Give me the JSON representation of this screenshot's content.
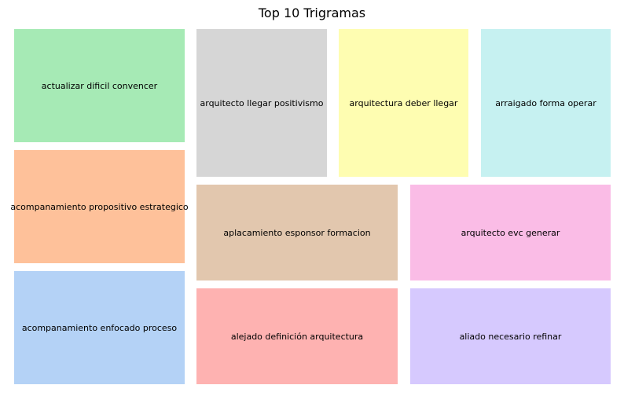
{
  "chart_data": {
    "type": "treemap",
    "title": "Top 10 Trigramas",
    "items": [
      {
        "label": "actualizar dificil convencer",
        "color": "#a6eab5"
      },
      {
        "label": "acompanamiento propositivo estrategico",
        "color": "#fec19a"
      },
      {
        "label": "acompanamiento enfocado proceso",
        "color": "#b4d2f6"
      },
      {
        "label": "arquitecto llegar positivismo",
        "color": "#d6d6d6"
      },
      {
        "label": "arquitectura deber llegar",
        "color": "#fefdb1"
      },
      {
        "label": "arraigado forma operar",
        "color": "#c6f1f1"
      },
      {
        "label": "aplacamiento esponsor formacion",
        "color": "#e2c7ae"
      },
      {
        "label": "arquitecto evc generar",
        "color": "#fabce6"
      },
      {
        "label": "alejado definición arquitectura",
        "color": "#feb2b1"
      },
      {
        "label": "aliado necesario refinar",
        "color": "#d6c9fe"
      }
    ]
  }
}
